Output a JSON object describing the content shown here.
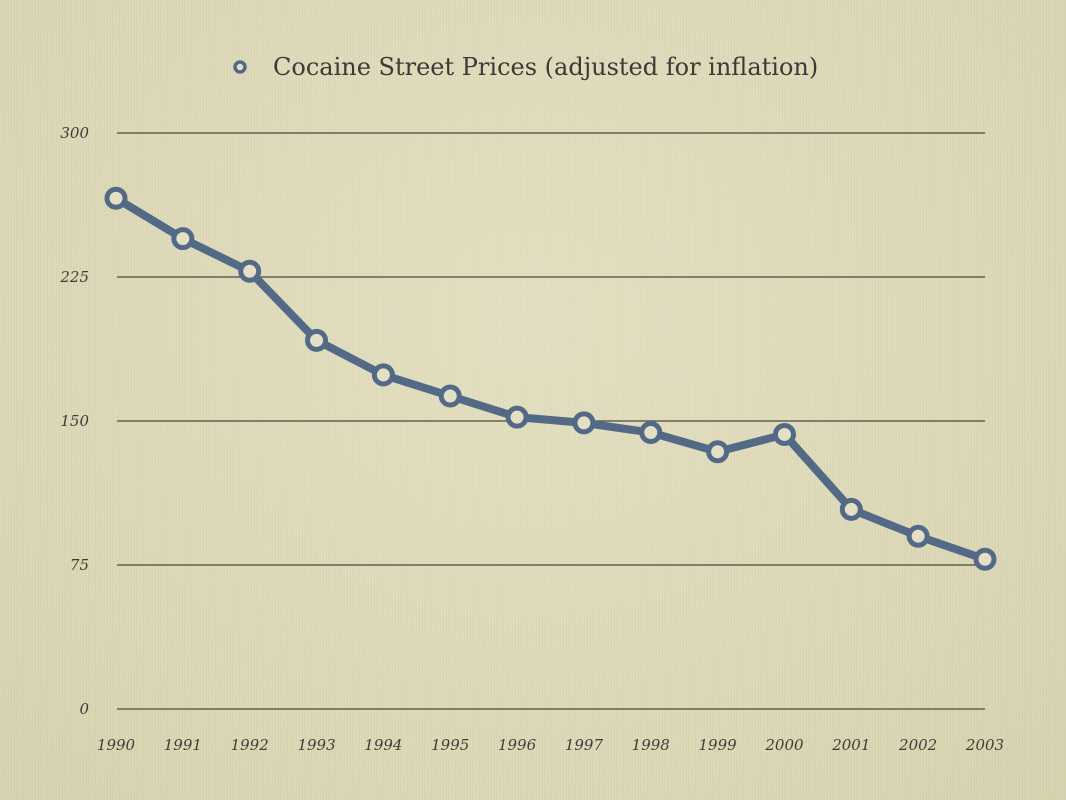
{
  "chart_data": {
    "type": "line",
    "title": "",
    "xlabel": "",
    "ylabel": "",
    "categories": [
      "1990",
      "1991",
      "1992",
      "1993",
      "1994",
      "1995",
      "1996",
      "1997",
      "1998",
      "1999",
      "2000",
      "2001",
      "2002",
      "2003"
    ],
    "series": [
      {
        "name": "Cocaine Street Prices (adjusted for inflation)",
        "values": [
          266,
          245,
          228,
          192,
          174,
          163,
          152,
          149,
          144,
          134,
          143,
          104,
          90,
          78
        ],
        "color": "#536a86"
      }
    ],
    "ylim": [
      0,
      300
    ],
    "yticks": [
      "0",
      "75",
      "150",
      "225",
      "300"
    ],
    "grid": true,
    "legend_position": "top-center",
    "marker_fill": "#e4e0c6"
  }
}
